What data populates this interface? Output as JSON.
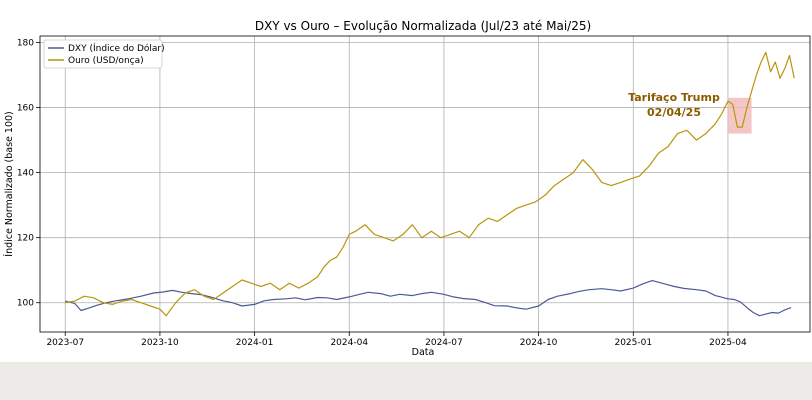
{
  "chart_data": {
    "type": "line",
    "title": "DXY vs Ouro – Evolução Normalizada (Jul/23 até Mai/25)",
    "xlabel": "Data",
    "ylabel": "Índice Normalizado (base 100)",
    "x_ticks": [
      "2023-07",
      "2023-10",
      "2024-01",
      "2024-04",
      "2024-07",
      "2024-10",
      "2025-01",
      "2025-04"
    ],
    "x_tick_months": [
      0,
      3,
      6,
      9,
      12,
      15,
      18,
      21
    ],
    "y_ticks": [
      100,
      120,
      140,
      160,
      180
    ],
    "xlim_months": [
      -0.8,
      23.6
    ],
    "ylim": [
      91,
      182
    ],
    "grid": true,
    "legend": "top-left",
    "series": [
      {
        "name": "DXY (Índice do Dólar)",
        "color": "#4c5a92",
        "x_months": [
          0,
          0.3,
          0.5,
          0.7,
          1,
          1.3,
          1.6,
          2,
          2.4,
          2.8,
          3.1,
          3.4,
          3.7,
          4,
          4.3,
          4.6,
          5,
          5.3,
          5.6,
          6,
          6.3,
          6.6,
          7,
          7.3,
          7.6,
          8,
          8.3,
          8.6,
          9,
          9.3,
          9.6,
          10,
          10.3,
          10.6,
          11,
          11.3,
          11.6,
          12,
          12.3,
          12.6,
          13,
          13.3,
          13.6,
          14,
          14.3,
          14.6,
          15,
          15.3,
          15.6,
          16,
          16.3,
          16.6,
          17,
          17.3,
          17.6,
          18,
          18.3,
          18.6,
          19,
          19.3,
          19.6,
          20,
          20.3,
          20.6,
          21,
          21.2,
          21.4,
          21.6,
          21.8,
          22,
          22.2,
          22.4,
          22.6,
          22.8,
          23
        ],
        "values": [
          100.5,
          99.8,
          97.6,
          98.2,
          99.2,
          100.0,
          100.6,
          101.2,
          102.0,
          103.0,
          103.3,
          103.8,
          103.2,
          102.8,
          102.5,
          101.8,
          100.6,
          100.0,
          99.0,
          99.5,
          100.6,
          101.0,
          101.2,
          101.5,
          100.9,
          101.6,
          101.5,
          101.0,
          101.8,
          102.5,
          103.2,
          102.8,
          102.0,
          102.6,
          102.2,
          102.8,
          103.2,
          102.6,
          101.8,
          101.3,
          101.0,
          100.1,
          99.1,
          99.0,
          98.4,
          98.0,
          99.0,
          101.0,
          102.0,
          102.8,
          103.5,
          104.0,
          104.3,
          104.0,
          103.6,
          104.5,
          105.8,
          106.8,
          105.8,
          105.0,
          104.4,
          104.0,
          103.6,
          102.2,
          101.2,
          101.0,
          100.2,
          98.5,
          97.0,
          96.0,
          96.5,
          97.0,
          96.8,
          97.8,
          98.5
        ]
      },
      {
        "name": "Ouro (USD/onça)",
        "color": "#b8960c",
        "x_months": [
          0,
          0.3,
          0.6,
          0.9,
          1.2,
          1.5,
          1.8,
          2.1,
          2.4,
          2.7,
          3,
          3.2,
          3.5,
          3.8,
          4.1,
          4.4,
          4.7,
          5,
          5.3,
          5.6,
          5.9,
          6.2,
          6.5,
          6.8,
          7.1,
          7.4,
          7.7,
          8,
          8.2,
          8.4,
          8.6,
          8.8,
          9,
          9.2,
          9.5,
          9.8,
          10.1,
          10.4,
          10.7,
          11,
          11.3,
          11.6,
          11.9,
          12.2,
          12.5,
          12.8,
          13.1,
          13.4,
          13.7,
          14,
          14.3,
          14.6,
          14.9,
          15.2,
          15.5,
          15.8,
          16.1,
          16.4,
          16.7,
          17,
          17.3,
          17.6,
          17.9,
          18.2,
          18.5,
          18.8,
          19.1,
          19.4,
          19.7,
          20,
          20.3,
          20.6,
          20.8,
          21,
          21.15,
          21.3,
          21.45,
          21.6,
          21.75,
          21.9,
          22.05,
          22.2,
          22.35,
          22.5,
          22.65,
          22.8,
          22.95,
          23.1
        ],
        "values": [
          100.0,
          100.5,
          102.0,
          101.5,
          100.0,
          99.5,
          100.5,
          101.0,
          100.0,
          99.0,
          98.0,
          96.0,
          100.0,
          103.0,
          104.0,
          102.0,
          101.0,
          103.0,
          105.0,
          107.0,
          106.0,
          105.0,
          106.0,
          104.0,
          106.0,
          104.5,
          106.0,
          108.0,
          111.0,
          113.0,
          114.0,
          117.0,
          121.0,
          122.0,
          124.0,
          121.0,
          120.0,
          119.0,
          121.0,
          124.0,
          120.0,
          122.0,
          120.0,
          121.0,
          122.0,
          120.0,
          124.0,
          126.0,
          125.0,
          127.0,
          129.0,
          130.0,
          131.0,
          133.0,
          136.0,
          138.0,
          140.0,
          144.0,
          141.0,
          137.0,
          136.0,
          137.0,
          138.0,
          139.0,
          142.0,
          146.0,
          148.0,
          152.0,
          153.0,
          150.0,
          152.0,
          155.0,
          158.0,
          162.0,
          161.0,
          154.0,
          154.0,
          160.0,
          165.0,
          170.0,
          174.0,
          177.0,
          171.0,
          174.0,
          169.0,
          172.0,
          176.0,
          169.0
        ]
      }
    ],
    "annotation": {
      "text_line1": "Tarifaço Trump",
      "text_line2": "02/04/25",
      "color": "#8a5c00",
      "highlight_color": "#f2b8b8"
    }
  }
}
